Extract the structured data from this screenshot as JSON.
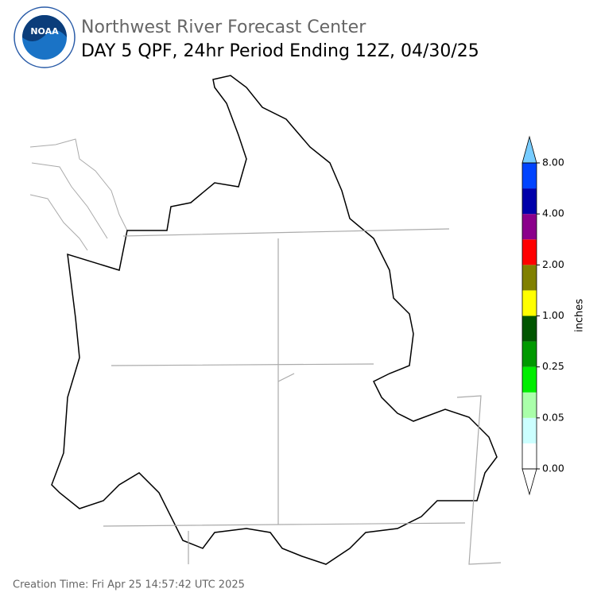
{
  "header": {
    "title": "Northwest River Forecast Center",
    "subtitle": "DAY 5 QPF, 24hr Period Ending 12Z, 04/30/25",
    "logo_text": "NOAA"
  },
  "colorbar": {
    "label": "inches",
    "colors": [
      "#ffffff",
      "#ccffff",
      "#aaffaa",
      "#00ee00",
      "#009900",
      "#005500",
      "#ffff00",
      "#808000",
      "#ff0000",
      "#8b008b",
      "#0000aa",
      "#0044ff"
    ],
    "under_color": "#ffffff",
    "over_color": "#77ccff",
    "tick_labels": [
      "0.00",
      "0.05",
      "0.25",
      "1.00",
      "2.00",
      "4.00",
      "8.00"
    ]
  },
  "footer": {
    "creation_time": "Creation Time: Fri Apr 25 14:57:42 UTC 2025"
  }
}
